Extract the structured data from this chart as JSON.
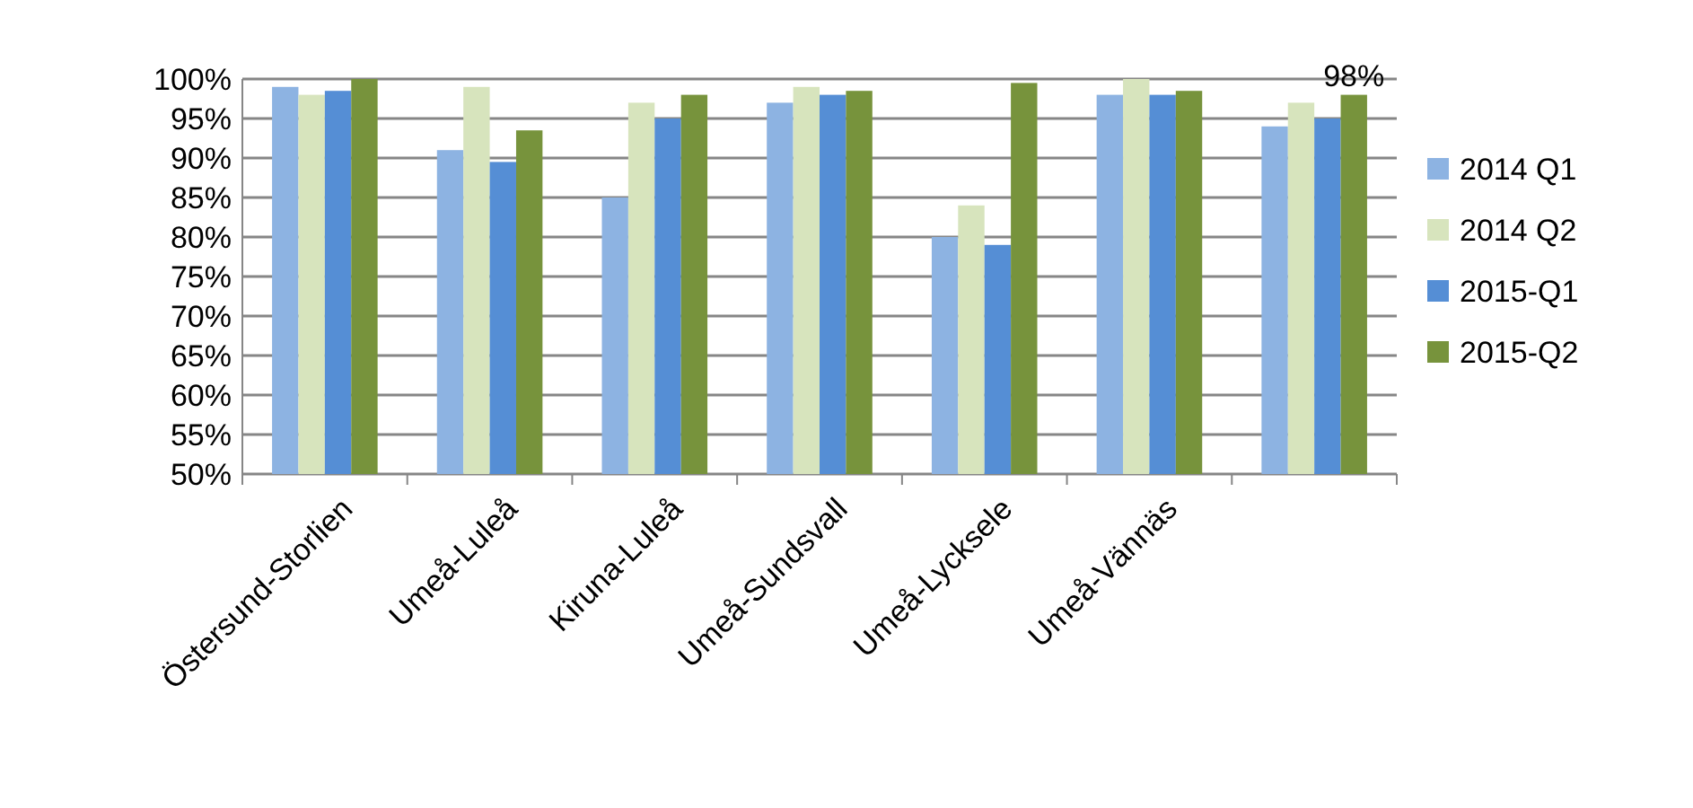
{
  "chart_data": {
    "type": "bar",
    "categories": [
      "Östersund-Storlien",
      "Umeå-Luleå",
      "Kiruna-Luleå",
      "Umeå-Sundsvall",
      "Umeå-Lycksele",
      "Umeå-Vännäs",
      null
    ],
    "series": [
      {
        "name": "2014 Q1",
        "color": "#8db3e2",
        "values": [
          99,
          91,
          85,
          97,
          80,
          98,
          94
        ]
      },
      {
        "name": "2014 Q2",
        "color": "#d7e4bd",
        "values": [
          98,
          99,
          97,
          99,
          84,
          100,
          97
        ]
      },
      {
        "name": "2015-Q1",
        "color": "#558ed5",
        "values": [
          98.5,
          89.5,
          95,
          98,
          79,
          98,
          95
        ]
      },
      {
        "name": "2015-Q2",
        "color": "#77933c",
        "values": [
          100,
          93.5,
          98,
          98.5,
          99.5,
          98.5,
          98
        ],
        "value_labels": [
          null,
          null,
          null,
          null,
          null,
          null,
          "98%"
        ]
      }
    ],
    "ylim": [
      50,
      100
    ],
    "yticks": [
      {
        "value": 50,
        "label": "50%"
      },
      {
        "value": 55,
        "label": "55%"
      },
      {
        "value": 60,
        "label": "60%"
      },
      {
        "value": 65,
        "label": "65%"
      },
      {
        "value": 70,
        "label": "70%"
      },
      {
        "value": 75,
        "label": "75%"
      },
      {
        "value": 80,
        "label": "80%"
      },
      {
        "value": 85,
        "label": "85%"
      },
      {
        "value": 90,
        "label": "90%"
      },
      {
        "value": 95,
        "label": "95%"
      },
      {
        "value": 100,
        "label": "100%"
      }
    ],
    "grid": "y",
    "legend": "right"
  }
}
